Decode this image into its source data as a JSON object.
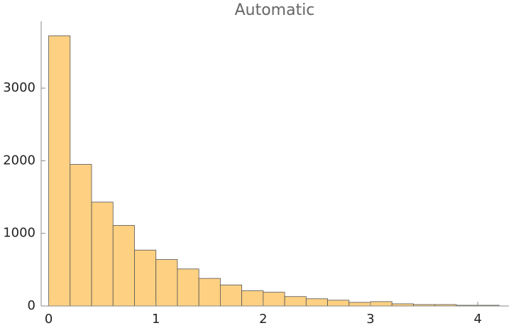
{
  "chart_data": {
    "type": "histogram",
    "title": "Automatic",
    "bins": [
      0,
      0.2,
      0.4,
      0.6,
      0.8,
      1,
      1.2,
      1.4,
      1.6,
      1.8,
      2,
      2.2,
      2.4,
      2.6,
      2.8,
      3,
      3.2,
      3.4,
      3.6,
      3.8,
      4,
      4.2
    ],
    "counts": [
      3720,
      1950,
      1430,
      1110,
      770,
      640,
      510,
      380,
      290,
      210,
      190,
      130,
      100,
      80,
      50,
      60,
      30,
      20,
      20,
      10,
      10
    ],
    "color": "#fdd082",
    "xlim": [
      -0.07,
      4.29
    ],
    "xticks": [
      0,
      1,
      2,
      3,
      4
    ],
    "ylim": [
      0,
      3920
    ],
    "yticks": [
      0,
      1000,
      2000,
      3000
    ]
  }
}
